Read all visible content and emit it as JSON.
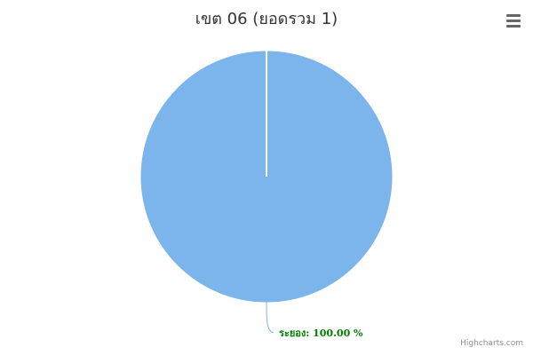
{
  "chart_data": {
    "type": "pie",
    "title": "เขต 06 (ยอดรวม 1)",
    "slices": [
      {
        "name": "ระยอง",
        "value": 1,
        "percent": 100.0,
        "label": "ระยอง: 100.00 %",
        "color": "#7cb5ec"
      }
    ],
    "legend": false,
    "label_color": "#008000",
    "connector_color": "#7cb5ec"
  },
  "toolbar": {
    "menu_icon": "hamburger-menu-icon"
  },
  "credits": {
    "text": "Highcharts.com"
  }
}
